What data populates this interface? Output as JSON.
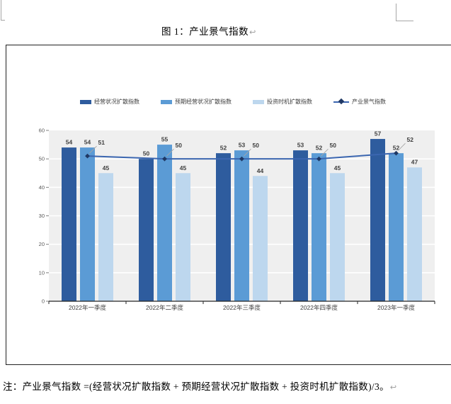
{
  "document": {
    "figure_title": "图 1：产业景气指数",
    "paragraph_mark": "↩",
    "footnote": "注：产业景气指数 =(经营状况扩散指数 + 预期经营状况扩散指数 + 投资时机扩散指数)/3。"
  },
  "chart_data": {
    "type": "bar",
    "subtype": "grouped-bar-with-line-overlay",
    "title": "图 1：产业景气指数",
    "categories": [
      "2022年一季度",
      "2022年二季度",
      "2022年三季度",
      "2022年四季度",
      "2023年一季度"
    ],
    "series": [
      {
        "name": "经营状况扩散指数",
        "type": "bar",
        "color": "#2E5C9E",
        "values": [
          54,
          50,
          52,
          53,
          57
        ]
      },
      {
        "name": "预期经营状况扩散指数",
        "type": "bar",
        "color": "#5B9BD5",
        "values": [
          54,
          55,
          53,
          52,
          52
        ]
      },
      {
        "name": "投资时机扩散指数",
        "type": "bar",
        "color": "#BDD7EE",
        "values": [
          45,
          45,
          44,
          45,
          47
        ]
      },
      {
        "name": "产业景气指数",
        "type": "line",
        "color": "#3B66B0",
        "marker_color": "#1F3864",
        "values": [
          51,
          50,
          50,
          50,
          52
        ]
      }
    ],
    "xlabel": "",
    "ylabel": "",
    "ylim": [
      0,
      60
    ],
    "ytick_interval": 10,
    "grid": true,
    "legend_position": "top",
    "plot_bg": "#EFEFEF",
    "gridline_color": "#FFFFFF",
    "axis_color": "#262626",
    "tick_label_color": "#595959",
    "value_label_color": "#404040",
    "leader_line_color": "#A6A6A6"
  }
}
